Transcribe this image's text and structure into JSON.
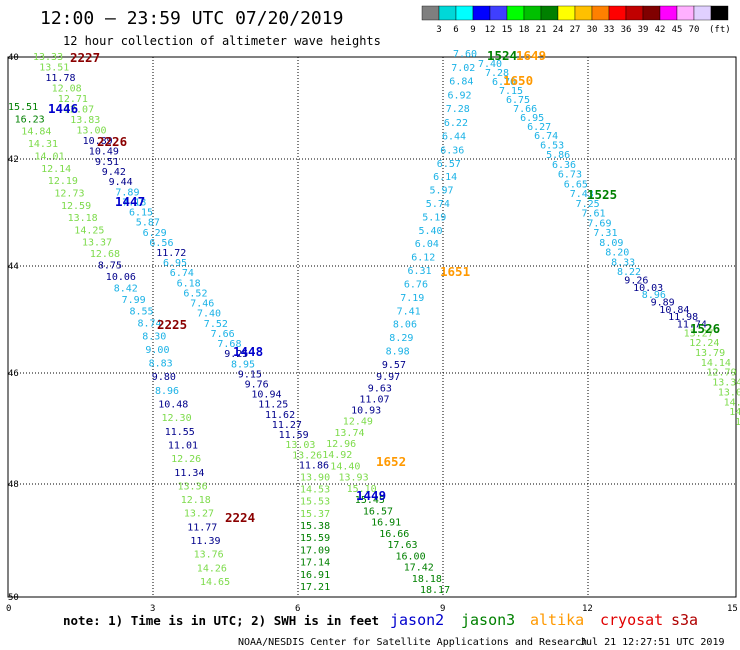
{
  "header": {
    "title": "12:00 – 23:59 UTC 07/20/2019",
    "subtitle": "12 hour collection of altimeter wave heights"
  },
  "colorbar": {
    "colors": [
      "#7f7f7f",
      "#00d8d8",
      "#00ffff",
      "#0000ff",
      "#3f3fff",
      "#00ff00",
      "#00c000",
      "#008000",
      "#ffff00",
      "#ffc000",
      "#ff8000",
      "#ff0000",
      "#c00000",
      "#800000",
      "#ff00ff",
      "#ffb0ff",
      "#e0d0ff",
      "#000000"
    ],
    "labels": [
      "3",
      "6",
      "9",
      "12",
      "15",
      "18",
      "21",
      "24",
      "27",
      "30",
      "33",
      "36",
      "39",
      "42",
      "45",
      "70",
      "(ft)"
    ]
  },
  "axes": {
    "x_ticks": [
      "0",
      "3",
      "6",
      "9",
      "12",
      "15"
    ],
    "y_ticks": [
      "40",
      "42",
      "44",
      "46",
      "48",
      "50"
    ]
  },
  "passes": [
    {
      "label": "2227",
      "color": "#8b0000"
    },
    {
      "label": "1446",
      "color": "#0000cd"
    },
    {
      "label": "2226",
      "color": "#8b0000"
    },
    {
      "label": "1447",
      "color": "#0000cd"
    },
    {
      "label": "2225",
      "color": "#8b0000"
    },
    {
      "label": "1448",
      "color": "#0000cd"
    },
    {
      "label": "2224",
      "color": "#8b0000"
    },
    {
      "label": "1524",
      "color": "#008000"
    },
    {
      "label": "1649",
      "color": "#ff9900"
    },
    {
      "label": "1650",
      "color": "#ff9900"
    },
    {
      "label": "1525",
      "color": "#008000"
    },
    {
      "label": "1651",
      "color": "#ff9900"
    },
    {
      "label": "1526",
      "color": "#008000"
    },
    {
      "label": "1652",
      "color": "#ff9900"
    },
    {
      "label": "1449",
      "color": "#0000cd"
    }
  ],
  "waves": {
    "track_a": [
      {
        "v": "13.33",
        "c": "#7ddb4b"
      },
      {
        "v": "13.51",
        "c": "#7ddb4b"
      },
      {
        "v": "11.78",
        "c": "#00008b"
      },
      {
        "v": "12.08",
        "c": "#7ddb4b"
      },
      {
        "v": "12.71",
        "c": "#7ddb4b"
      },
      {
        "v": "12.07",
        "c": "#7ddb4b"
      },
      {
        "v": "13.83",
        "c": "#7ddb4b"
      },
      {
        "v": "13.00",
        "c": "#7ddb4b"
      },
      {
        "v": "10.89",
        "c": "#00008b"
      },
      {
        "v": "10.49",
        "c": "#00008b"
      },
      {
        "v": "9.51",
        "c": "#00008b"
      },
      {
        "v": "9.42",
        "c": "#00008b"
      },
      {
        "v": "9.44",
        "c": "#00008b"
      },
      {
        "v": "7.89",
        "c": "#1ab2e6"
      },
      {
        "v": "7.18",
        "c": "#1ab2e6"
      },
      {
        "v": "6.15",
        "c": "#1ab2e6"
      },
      {
        "v": "5.87",
        "c": "#1ab2e6"
      },
      {
        "v": "6.29",
        "c": "#1ab2e6"
      },
      {
        "v": "6.56",
        "c": "#1ab2e6"
      },
      {
        "v": "11.72",
        "c": "#00008b"
      },
      {
        "v": "6.95",
        "c": "#1ab2e6"
      },
      {
        "v": "6.74",
        "c": "#1ab2e6"
      },
      {
        "v": "6.18",
        "c": "#1ab2e6"
      },
      {
        "v": "6.52",
        "c": "#1ab2e6"
      },
      {
        "v": "7.46",
        "c": "#1ab2e6"
      },
      {
        "v": "7.40",
        "c": "#1ab2e6"
      },
      {
        "v": "7.52",
        "c": "#1ab2e6"
      },
      {
        "v": "7.66",
        "c": "#1ab2e6"
      },
      {
        "v": "7.68",
        "c": "#1ab2e6"
      },
      {
        "v": "9.25",
        "c": "#00008b"
      },
      {
        "v": "8.95",
        "c": "#1ab2e6"
      },
      {
        "v": "9.15",
        "c": "#00008b"
      },
      {
        "v": "9.76",
        "c": "#00008b"
      },
      {
        "v": "10.94",
        "c": "#00008b"
      },
      {
        "v": "11.25",
        "c": "#00008b"
      },
      {
        "v": "11.62",
        "c": "#00008b"
      },
      {
        "v": "11.27",
        "c": "#00008b"
      },
      {
        "v": "11.59",
        "c": "#00008b"
      },
      {
        "v": "13.03",
        "c": "#7ddb4b"
      },
      {
        "v": "13.26",
        "c": "#7ddb4b"
      },
      {
        "v": "11.86",
        "c": "#00008b"
      },
      {
        "v": "13.90",
        "c": "#7ddb4b"
      },
      {
        "v": "14.53",
        "c": "#7ddb4b"
      },
      {
        "v": "15.53",
        "c": "#7ddb4b"
      },
      {
        "v": "15.37",
        "c": "#7ddb4b"
      },
      {
        "v": "15.38",
        "c": "#008000"
      },
      {
        "v": "15.59",
        "c": "#008000"
      },
      {
        "v": "17.09",
        "c": "#008000"
      },
      {
        "v": "17.14",
        "c": "#008000"
      },
      {
        "v": "16.91",
        "c": "#008000"
      },
      {
        "v": "17.21",
        "c": "#008000"
      }
    ],
    "track_b": [
      {
        "v": "15.51",
        "c": "#008000"
      },
      {
        "v": "16.23",
        "c": "#008000"
      },
      {
        "v": "14.84",
        "c": "#7ddb4b"
      },
      {
        "v": "14.31",
        "c": "#7ddb4b"
      },
      {
        "v": "14.01",
        "c": "#7ddb4b"
      },
      {
        "v": "12.14",
        "c": "#7ddb4b"
      },
      {
        "v": "12.19",
        "c": "#7ddb4b"
      },
      {
        "v": "12.73",
        "c": "#7ddb4b"
      },
      {
        "v": "12.59",
        "c": "#7ddb4b"
      },
      {
        "v": "13.18",
        "c": "#7ddb4b"
      },
      {
        "v": "14.25",
        "c": "#7ddb4b"
      },
      {
        "v": "13.37",
        "c": "#7ddb4b"
      },
      {
        "v": "12.68",
        "c": "#7ddb4b"
      },
      {
        "v": "8.75",
        "c": "#00008b"
      },
      {
        "v": "10.06",
        "c": "#00008b"
      },
      {
        "v": "8.42",
        "c": "#1ab2e6"
      },
      {
        "v": "7.99",
        "c": "#1ab2e6"
      },
      {
        "v": "8.55",
        "c": "#1ab2e6"
      },
      {
        "v": "8.74",
        "c": "#1ab2e6"
      },
      {
        "v": "8.30",
        "c": "#1ab2e6"
      },
      {
        "v": "9.00",
        "c": "#1ab2e6"
      },
      {
        "v": "8.83",
        "c": "#1ab2e6"
      },
      {
        "v": "9.80",
        "c": "#00008b"
      },
      {
        "v": "8.96",
        "c": "#1ab2e6"
      },
      {
        "v": "10.48",
        "c": "#00008b"
      },
      {
        "v": "12.30",
        "c": "#7ddb4b"
      },
      {
        "v": "11.55",
        "c": "#00008b"
      },
      {
        "v": "11.01",
        "c": "#00008b"
      },
      {
        "v": "12.26",
        "c": "#7ddb4b"
      },
      {
        "v": "11.34",
        "c": "#00008b"
      },
      {
        "v": "13.36",
        "c": "#7ddb4b"
      },
      {
        "v": "12.18",
        "c": "#7ddb4b"
      },
      {
        "v": "13.27",
        "c": "#7ddb4b"
      },
      {
        "v": "11.77",
        "c": "#00008b"
      },
      {
        "v": "11.39",
        "c": "#00008b"
      },
      {
        "v": "13.76",
        "c": "#7ddb4b"
      },
      {
        "v": "14.26",
        "c": "#7ddb4b"
      },
      {
        "v": "14.65",
        "c": "#7ddb4b"
      }
    ],
    "track_c": [
      {
        "v": "7.60",
        "c": "#1ab2e6"
      },
      {
        "v": "7.02",
        "c": "#1ab2e6"
      },
      {
        "v": "6.84",
        "c": "#1ab2e6"
      },
      {
        "v": "6.92",
        "c": "#1ab2e6"
      },
      {
        "v": "7.28",
        "c": "#1ab2e6"
      },
      {
        "v": "6.22",
        "c": "#1ab2e6"
      },
      {
        "v": "6.44",
        "c": "#1ab2e6"
      },
      {
        "v": "6.36",
        "c": "#1ab2e6"
      },
      {
        "v": "6.57",
        "c": "#1ab2e6"
      },
      {
        "v": "6.14",
        "c": "#1ab2e6"
      },
      {
        "v": "5.97",
        "c": "#1ab2e6"
      },
      {
        "v": "5.74",
        "c": "#1ab2e6"
      },
      {
        "v": "5.19",
        "c": "#1ab2e6"
      },
      {
        "v": "5.40",
        "c": "#1ab2e6"
      },
      {
        "v": "6.04",
        "c": "#1ab2e6"
      },
      {
        "v": "6.12",
        "c": "#1ab2e6"
      },
      {
        "v": "6.31",
        "c": "#1ab2e6"
      },
      {
        "v": "6.76",
        "c": "#1ab2e6"
      },
      {
        "v": "7.19",
        "c": "#1ab2e6"
      },
      {
        "v": "7.41",
        "c": "#1ab2e6"
      },
      {
        "v": "8.06",
        "c": "#1ab2e6"
      },
      {
        "v": "8.29",
        "c": "#1ab2e6"
      },
      {
        "v": "8.98",
        "c": "#1ab2e6"
      },
      {
        "v": "9.57",
        "c": "#00008b"
      },
      {
        "v": "9.97",
        "c": "#00008b"
      },
      {
        "v": "9.63",
        "c": "#00008b"
      },
      {
        "v": "11.07",
        "c": "#00008b"
      },
      {
        "v": "10.93",
        "c": "#00008b"
      },
      {
        "v": "12.49",
        "c": "#7ddb4b"
      },
      {
        "v": "13.74",
        "c": "#7ddb4b"
      },
      {
        "v": "12.96",
        "c": "#7ddb4b"
      },
      {
        "v": "14.92",
        "c": "#7ddb4b"
      },
      {
        "v": "14.40",
        "c": "#7ddb4b"
      },
      {
        "v": "13.93",
        "c": "#7ddb4b"
      },
      {
        "v": "15.10",
        "c": "#7ddb4b"
      },
      {
        "v": "15.45",
        "c": "#008000"
      },
      {
        "v": "16.57",
        "c": "#008000"
      },
      {
        "v": "16.91",
        "c": "#008000"
      },
      {
        "v": "16.66",
        "c": "#008000"
      },
      {
        "v": "17.63",
        "c": "#008000"
      },
      {
        "v": "16.00",
        "c": "#008000"
      },
      {
        "v": "17.42",
        "c": "#008000"
      },
      {
        "v": "18.18",
        "c": "#008000"
      },
      {
        "v": "18.17",
        "c": "#008000"
      }
    ],
    "track_d": [
      {
        "v": "7.40",
        "c": "#1ab2e6"
      },
      {
        "v": "7.28",
        "c": "#1ab2e6"
      },
      {
        "v": "6.70",
        "c": "#1ab2e6"
      },
      {
        "v": "7.15",
        "c": "#1ab2e6"
      },
      {
        "v": "6.75",
        "c": "#1ab2e6"
      },
      {
        "v": "7.66",
        "c": "#1ab2e6"
      },
      {
        "v": "6.95",
        "c": "#1ab2e6"
      },
      {
        "v": "6.27",
        "c": "#1ab2e6"
      },
      {
        "v": "6.74",
        "c": "#1ab2e6"
      },
      {
        "v": "6.53",
        "c": "#1ab2e6"
      },
      {
        "v": "5.86",
        "c": "#1ab2e6"
      },
      {
        "v": "6.36",
        "c": "#1ab2e6"
      },
      {
        "v": "6.73",
        "c": "#1ab2e6"
      },
      {
        "v": "6.65",
        "c": "#1ab2e6"
      },
      {
        "v": "7.43",
        "c": "#1ab2e6"
      },
      {
        "v": "7.25",
        "c": "#1ab2e6"
      },
      {
        "v": "7.61",
        "c": "#1ab2e6"
      },
      {
        "v": "7.69",
        "c": "#1ab2e6"
      },
      {
        "v": "7.31",
        "c": "#1ab2e6"
      },
      {
        "v": "8.09",
        "c": "#1ab2e6"
      },
      {
        "v": "8.20",
        "c": "#1ab2e6"
      },
      {
        "v": "8.33",
        "c": "#1ab2e6"
      },
      {
        "v": "8.22",
        "c": "#1ab2e6"
      },
      {
        "v": "9.26",
        "c": "#00008b"
      },
      {
        "v": "10.03",
        "c": "#00008b"
      },
      {
        "v": "8.96",
        "c": "#1ab2e6"
      },
      {
        "v": "9.89",
        "c": "#00008b"
      },
      {
        "v": "10.84",
        "c": "#00008b"
      },
      {
        "v": "11.98",
        "c": "#00008b"
      },
      {
        "v": "11.74",
        "c": "#00008b"
      },
      {
        "v": "13.27",
        "c": "#7ddb4b"
      },
      {
        "v": "12.24",
        "c": "#7ddb4b"
      },
      {
        "v": "13.79",
        "c": "#7ddb4b"
      },
      {
        "v": "14.14",
        "c": "#7ddb4b"
      },
      {
        "v": "12.79",
        "c": "#7ddb4b"
      },
      {
        "v": "13.34",
        "c": "#7ddb4b"
      },
      {
        "v": "13.06",
        "c": "#7ddb4b"
      },
      {
        "v": "14.38",
        "c": "#7ddb4b"
      },
      {
        "v": "14.0",
        "c": "#7ddb4b"
      },
      {
        "v": "15",
        "c": "#7ddb4b"
      }
    ]
  },
  "footer": {
    "note": "note: 1) Time is in UTC; 2) SWH is in feet",
    "satellites": [
      {
        "name": "jason2",
        "color": "#0000cd"
      },
      {
        "name": "jason3",
        "color": "#008000"
      },
      {
        "name": "altika",
        "color": "#ff9900"
      },
      {
        "name": "cryosat",
        "color": "#e00000"
      },
      {
        "name": "s3a",
        "color": "#b00000"
      }
    ],
    "credit": "NOAA/NESDIS Center for Satellite Applications and Research",
    "timestamp": "Jul 21 12:27:51 UTC 2019"
  }
}
